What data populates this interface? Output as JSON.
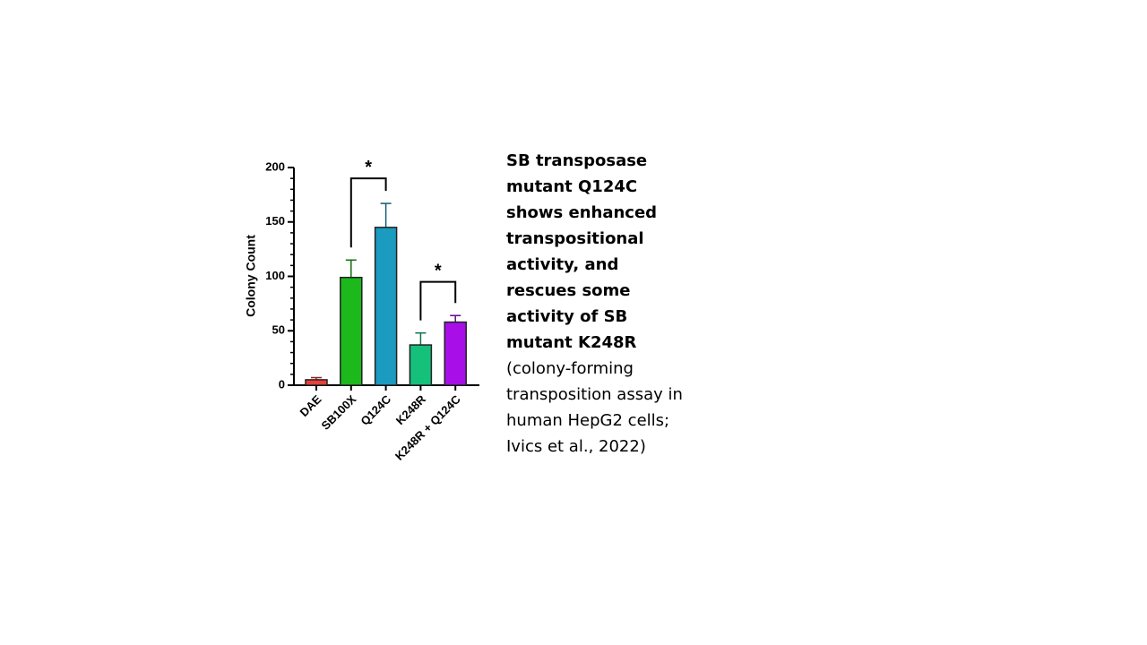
{
  "chart_data": {
    "type": "bar",
    "ylabel": "Colony Count",
    "categories": [
      "DAE",
      "SB100X",
      "Q124C",
      "K248R",
      "K248R + Q124C"
    ],
    "values": [
      5,
      99,
      145,
      37,
      58
    ],
    "errors": [
      2,
      16,
      22,
      11,
      6
    ],
    "colors": [
      "#e8403a",
      "#1cb81c",
      "#1a9bbf",
      "#14c07a",
      "#a80fe8"
    ],
    "ylim": [
      0,
      200
    ],
    "yticks": [
      0,
      50,
      100,
      150,
      200
    ],
    "yminorticks": [
      10,
      20,
      30,
      40,
      60,
      70,
      80,
      90,
      110,
      120,
      130,
      140,
      160,
      170,
      180,
      190
    ],
    "annotations": [
      {
        "text": "*",
        "from": 1,
        "to": 2,
        "y": 190
      },
      {
        "text": "*",
        "from": 3,
        "to": 4,
        "y": 95
      }
    ]
  },
  "caption": {
    "bold": "SB transposase mutant Q124C shows enhanced transpositional activity, and rescues some activity of SB mutant K248R",
    "normal": "(colony-forming transposition assay in human HepG2 cells; Ivics et al., 2022)"
  }
}
